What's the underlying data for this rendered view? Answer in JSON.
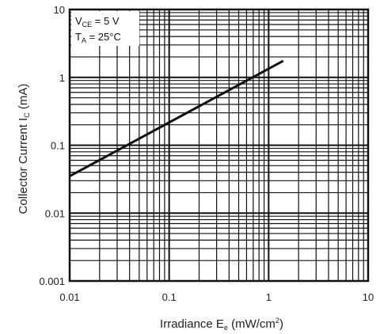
{
  "chart_data": {
    "type": "line",
    "x_scale": "log",
    "y_scale": "log",
    "xlim": [
      0.01,
      10
    ],
    "ylim": [
      0.001,
      10
    ],
    "grid": true,
    "x_ticks": [
      "0.01",
      "0.1",
      "1",
      "10"
    ],
    "y_ticks": [
      "0.001",
      "0.01",
      "0.1",
      "1",
      "10"
    ],
    "xlabel": {
      "main": "Irradiance E",
      "sub": "e",
      "unit_pre": " (mW/cm",
      "sup": "2",
      "unit_post": ")"
    },
    "ylabel": {
      "main": "Collector Current I",
      "sub": "C",
      "unit": " (mA)"
    },
    "conditions": [
      {
        "main": "V",
        "sub": "CE",
        "rest": " = 5 V"
      },
      {
        "main": "T",
        "sub": "A",
        "rest": " = 25°C"
      }
    ],
    "series": [
      {
        "x": [
          0.01,
          1.4
        ],
        "y": [
          0.035,
          1.75
        ]
      }
    ],
    "line_color": "#111111",
    "grid_color": "#111111"
  }
}
